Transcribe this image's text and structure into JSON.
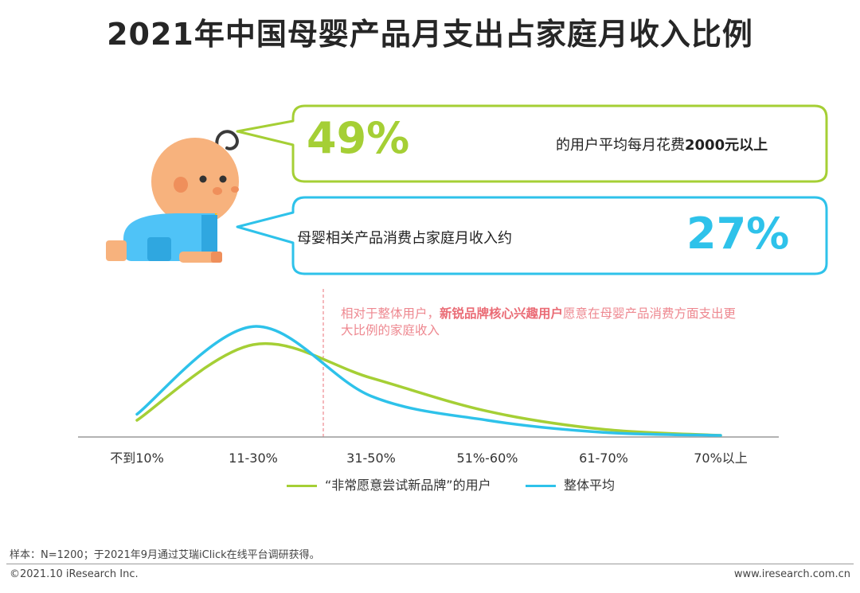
{
  "title": "2021年中国母婴产品月支出占家庭月收入比例",
  "stat_green": {
    "value": "49%",
    "text_pre": "的用户平均每月花费",
    "text_bold": "2000元以上"
  },
  "stat_blue": {
    "value": "27%",
    "text": "母婴相关产品消费占家庭月收入约"
  },
  "annotation": {
    "pre": "相对于整体用户，",
    "bold": "新锐品牌核心兴趣用户",
    "post": "愿意在母婴产品消费方面支出更大比例的家庭收入"
  },
  "colors": {
    "green": "#a5cf35",
    "blue": "#2ec2ea",
    "annotation": "#ee8890",
    "baby_skin": "#f7b27d",
    "baby_body": "#4fc3f7"
  },
  "chart_data": {
    "type": "line",
    "categories": [
      "不到10%",
      "11-30%",
      "31-50%",
      "51%-60%",
      "61-70%",
      "70%以上"
    ],
    "series": [
      {
        "name": "“非常愿意尝试新品牌”的用户",
        "color": "#a5cf35",
        "values": [
          5,
          30,
          19,
          8,
          2,
          0
        ]
      },
      {
        "name": "整体平均",
        "color": "#2ec2ea",
        "values": [
          7,
          36,
          13,
          5,
          1,
          0
        ]
      }
    ],
    "ylim": [
      0,
      40
    ],
    "legend": "bottom"
  },
  "footer": {
    "note": "样本：N=1200；于2021年9月通过艾瑞iClick在线平台调研获得。",
    "copyright": "©2021.10 iResearch Inc.",
    "website": "www.iresearch.com.cn"
  }
}
